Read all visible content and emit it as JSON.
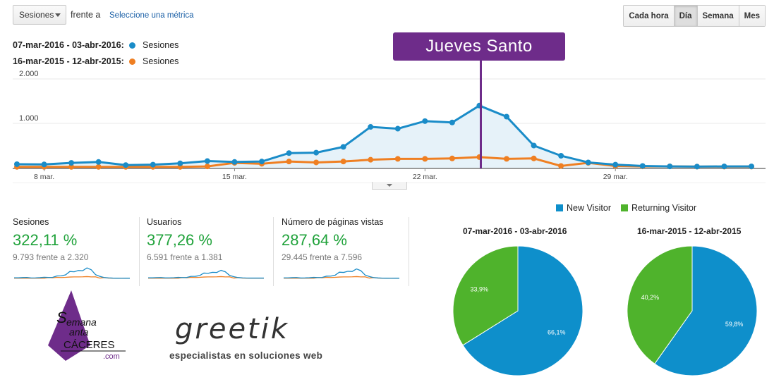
{
  "controls": {
    "metric_select": "Sesiones",
    "versus": "frente a",
    "select_metric_link": "Seleccione una métrica",
    "granularity": [
      {
        "label": "Cada hora",
        "active": false
      },
      {
        "label": "Día",
        "active": true
      },
      {
        "label": "Semana",
        "active": false
      },
      {
        "label": "Mes",
        "active": false
      }
    ]
  },
  "legend": [
    {
      "range": "07-mar-2016 - 03-abr-2016:",
      "metric": "Sesiones",
      "color": "#1a8cc8"
    },
    {
      "range": "16-mar-2015 - 12-abr-2015:",
      "metric": "Sesiones",
      "color": "#ef7f22"
    }
  ],
  "annotation": {
    "label": "Jueves Santo",
    "color": "#6e2c8a"
  },
  "chart_data": [
    {
      "type": "line",
      "ylim": [
        0,
        2000
      ],
      "yticks": [
        "2.000",
        "1.000"
      ],
      "xtick_labels": [
        {
          "label": "8 mar.",
          "index": 1
        },
        {
          "label": "15 mar.",
          "index": 8
        },
        {
          "label": "22 mar.",
          "index": 15
        },
        {
          "label": "29 mar.",
          "index": 22
        }
      ],
      "series": [
        {
          "color": "#1a8cc8",
          "values": [
            80,
            75,
            110,
            130,
            60,
            70,
            100,
            150,
            130,
            140,
            330,
            340,
            470,
            920,
            880,
            1050,
            1020,
            1400,
            1150,
            500,
            270,
            120,
            70,
            40,
            30,
            25,
            30,
            30
          ]
        },
        {
          "color": "#ef7f22",
          "values": [
            20,
            20,
            20,
            20,
            20,
            20,
            20,
            30,
            110,
            90,
            140,
            120,
            140,
            180,
            200,
            200,
            210,
            240,
            200,
            210,
            40,
            110,
            40,
            30,
            30,
            25,
            25,
            25
          ]
        }
      ]
    },
    {
      "type": "pie",
      "title": "07-mar-2016 - 03-abr-2016",
      "slices": [
        {
          "label": "New Visitor",
          "value": 66.1,
          "text": "66,1%",
          "color": "#0e8fcb"
        },
        {
          "label": "Returning Visitor",
          "value": 33.9,
          "text": "33,9%",
          "color": "#4fb32c"
        }
      ]
    },
    {
      "type": "pie",
      "title": "16-mar-2015 - 12-abr-2015",
      "slices": [
        {
          "label": "New Visitor",
          "value": 59.8,
          "text": "59,8%",
          "color": "#0e8fcb"
        },
        {
          "label": "Returning Visitor",
          "value": 40.2,
          "text": "40,2%",
          "color": "#4fb32c"
        }
      ]
    }
  ],
  "kpis": [
    {
      "label": "Sesiones",
      "value": "322,11 %",
      "compare": "9.793 frente a 2.320"
    },
    {
      "label": "Usuarios",
      "value": "377,26 %",
      "compare": "6.591 frente a 1.381"
    },
    {
      "label": "Número de páginas vistas",
      "value": "287,64 %",
      "compare": "29.445 frente a 7.596"
    }
  ],
  "pie_legend": [
    {
      "label": "New Visitor",
      "color": "#0e8fcb"
    },
    {
      "label": "Returning Visitor",
      "color": "#4fb32c"
    }
  ],
  "logos": {
    "semana_santa": "Semana Santa CÁCERES .com",
    "greetik": "greetik",
    "greetik_tagline": "especialistas en soluciones web"
  }
}
